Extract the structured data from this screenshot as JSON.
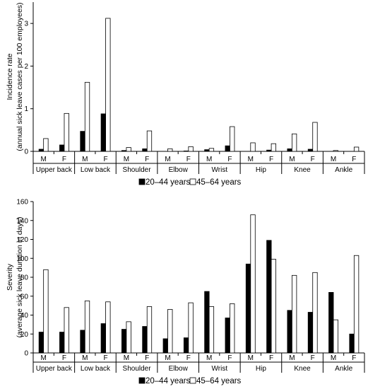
{
  "chart_data": [
    {
      "type": "bar",
      "ylabel_lines": [
        "Incidence rate",
        "(annual sick leave cases per 100 employees)"
      ],
      "ylim": [
        0,
        3.5
      ],
      "yticks": [
        "0",
        "1",
        "2",
        "3"
      ],
      "groups": [
        "Upper back",
        "Low back",
        "Shoulder",
        "Elbow",
        "Wrist",
        "Hip",
        "Knee",
        "Ankle"
      ],
      "sexes": [
        "M",
        "F"
      ],
      "legend": [
        "20–44 years",
        "45–64 years"
      ],
      "series": [
        {
          "name": "20–44 years",
          "color": "#000000",
          "values": [
            [
              0.05,
              0.15
            ],
            [
              0.47,
              0.88
            ],
            [
              0.02,
              0.06
            ],
            [
              0.0,
              0.01
            ],
            [
              0.04,
              0.13
            ],
            [
              0.0,
              0.03
            ],
            [
              0.06,
              0.05
            ],
            [
              0.0,
              0.0
            ]
          ]
        },
        {
          "name": "45–64 years",
          "color": "#ffffff",
          "values": [
            [
              0.3,
              0.89
            ],
            [
              1.62,
              3.12
            ],
            [
              0.09,
              0.48
            ],
            [
              0.06,
              0.11
            ],
            [
              0.07,
              0.58
            ],
            [
              0.2,
              0.18
            ],
            [
              0.41,
              0.68
            ],
            [
              0.02,
              0.1
            ]
          ]
        }
      ]
    },
    {
      "type": "bar",
      "ylabel_lines": [
        "Severity",
        "(average sick leave duration in days)"
      ],
      "ylim": [
        0,
        160
      ],
      "yticks": [
        "0",
        "20",
        "40",
        "60",
        "80",
        "100",
        "120",
        "140",
        "160"
      ],
      "groups": [
        "Upper back",
        "Low back",
        "Shoulder",
        "Elbow",
        "Wrist",
        "Hip",
        "Knee",
        "Ankle"
      ],
      "sexes": [
        "M",
        "F"
      ],
      "legend": [
        "20–44 years",
        "45–64 years"
      ],
      "series": [
        {
          "name": "20–44 years",
          "color": "#000000",
          "values": [
            [
              22,
              22
            ],
            [
              24,
              31
            ],
            [
              25,
              28
            ],
            [
              15,
              16
            ],
            [
              65,
              37
            ],
            [
              94,
              119
            ],
            [
              45,
              43
            ],
            [
              64,
              20
            ]
          ]
        },
        {
          "name": "45–64 years",
          "color": "#ffffff",
          "values": [
            [
              88,
              48
            ],
            [
              55,
              54
            ],
            [
              33,
              49
            ],
            [
              46,
              53
            ],
            [
              49,
              52
            ],
            [
              146,
              99
            ],
            [
              82,
              85
            ],
            [
              35,
              103
            ]
          ]
        }
      ]
    }
  ]
}
